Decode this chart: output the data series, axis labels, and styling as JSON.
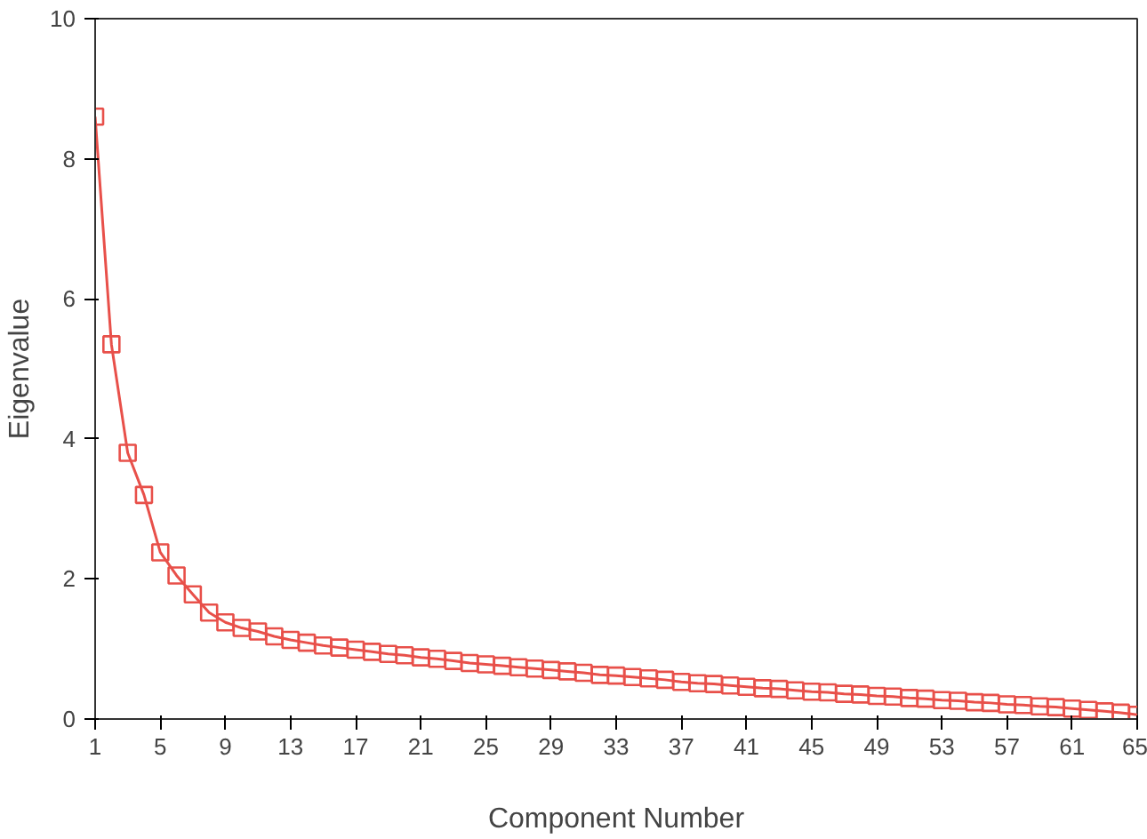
{
  "chart_data": {
    "type": "line",
    "xlabel": "Component Number",
    "ylabel": "Eigenvalue",
    "x": [
      1,
      2,
      3,
      4,
      5,
      6,
      7,
      8,
      9,
      10,
      11,
      12,
      13,
      14,
      15,
      16,
      17,
      18,
      19,
      20,
      21,
      22,
      23,
      24,
      25,
      26,
      27,
      28,
      29,
      30,
      31,
      32,
      33,
      34,
      35,
      36,
      37,
      38,
      39,
      40,
      41,
      42,
      43,
      44,
      45,
      46,
      47,
      48,
      49,
      50,
      51,
      52,
      53,
      54,
      55,
      56,
      57,
      58,
      59,
      60,
      61,
      62,
      63,
      64,
      65
    ],
    "series": [
      {
        "color": "#e8504a",
        "values": [
          8.6,
          5.35,
          3.8,
          3.2,
          2.38,
          2.05,
          1.78,
          1.52,
          1.38,
          1.3,
          1.25,
          1.18,
          1.13,
          1.09,
          1.05,
          1.02,
          0.99,
          0.96,
          0.93,
          0.91,
          0.88,
          0.86,
          0.83,
          0.8,
          0.78,
          0.76,
          0.74,
          0.72,
          0.7,
          0.68,
          0.66,
          0.63,
          0.62,
          0.6,
          0.58,
          0.56,
          0.53,
          0.51,
          0.5,
          0.48,
          0.46,
          0.44,
          0.43,
          0.41,
          0.39,
          0.38,
          0.36,
          0.35,
          0.33,
          0.32,
          0.3,
          0.29,
          0.27,
          0.26,
          0.24,
          0.23,
          0.21,
          0.2,
          0.18,
          0.17,
          0.15,
          0.13,
          0.11,
          0.09,
          0.06
        ]
      }
    ],
    "xlim": [
      1,
      65
    ],
    "xticks": [
      1,
      5,
      9,
      13,
      17,
      21,
      25,
      29,
      33,
      37,
      41,
      45,
      49,
      53,
      57,
      61,
      65
    ],
    "ylim": [
      0,
      10
    ],
    "yticks": [
      0,
      2,
      4,
      6,
      8,
      10
    ],
    "marker": "square",
    "line_style": "solid",
    "grid": false
  }
}
